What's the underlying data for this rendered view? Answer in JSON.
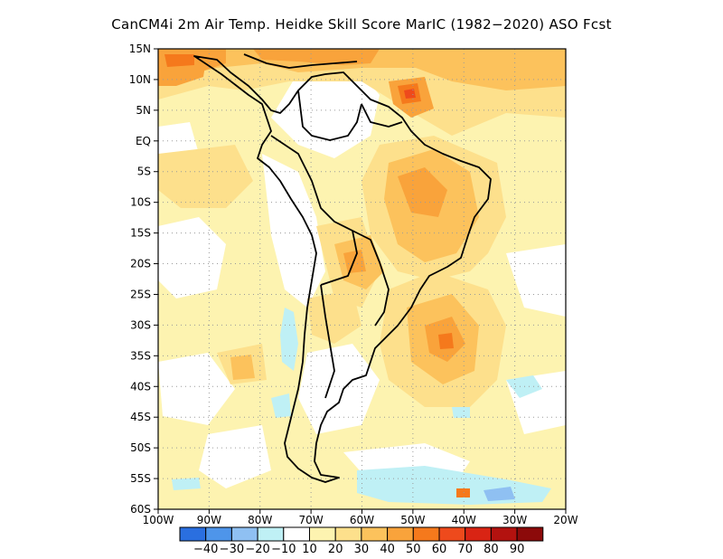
{
  "title": "CanCM4i  2m Air Temp. Heidke Skill Score MarIC (1982−2020) ASO Fcst",
  "map": {
    "lon_min": -100,
    "lon_max": -20,
    "lat_min": -60,
    "lat_max": 15,
    "lat_ticks": [
      {
        "value": 15,
        "label": "15N"
      },
      {
        "value": 10,
        "label": "10N"
      },
      {
        "value": 5,
        "label": "5N"
      },
      {
        "value": 0,
        "label": "EQ"
      },
      {
        "value": -5,
        "label": "5S"
      },
      {
        "value": -10,
        "label": "10S"
      },
      {
        "value": -15,
        "label": "15S"
      },
      {
        "value": -20,
        "label": "20S"
      },
      {
        "value": -25,
        "label": "25S"
      },
      {
        "value": -30,
        "label": "30S"
      },
      {
        "value": -35,
        "label": "35S"
      },
      {
        "value": -40,
        "label": "40S"
      },
      {
        "value": -45,
        "label": "45S"
      },
      {
        "value": -50,
        "label": "50S"
      },
      {
        "value": -55,
        "label": "55S"
      },
      {
        "value": -60,
        "label": "60S"
      }
    ],
    "lon_ticks": [
      {
        "value": -100,
        "label": "100W"
      },
      {
        "value": -90,
        "label": "90W"
      },
      {
        "value": -80,
        "label": "80W"
      },
      {
        "value": -70,
        "label": "70W"
      },
      {
        "value": -60,
        "label": "60W"
      },
      {
        "value": -50,
        "label": "50W"
      },
      {
        "value": -40,
        "label": "40W"
      },
      {
        "value": -30,
        "label": "30W"
      },
      {
        "value": -20,
        "label": "20W"
      }
    ],
    "grid": "dotted"
  },
  "colorbar": {
    "colors": [
      "#2a6fe0",
      "#4e95ea",
      "#8fc0f2",
      "#bff0f5",
      "#ffffff",
      "#fdf3b0",
      "#fde08c",
      "#fcc25c",
      "#f9a33b",
      "#f5791c",
      "#ee4a1c",
      "#d92414",
      "#b3120f",
      "#8c0a0a"
    ],
    "labels": [
      "−40",
      "−30",
      "−20",
      "−10",
      "10",
      "20",
      "30",
      "40",
      "50",
      "60",
      "70",
      "80",
      "90"
    ]
  }
}
